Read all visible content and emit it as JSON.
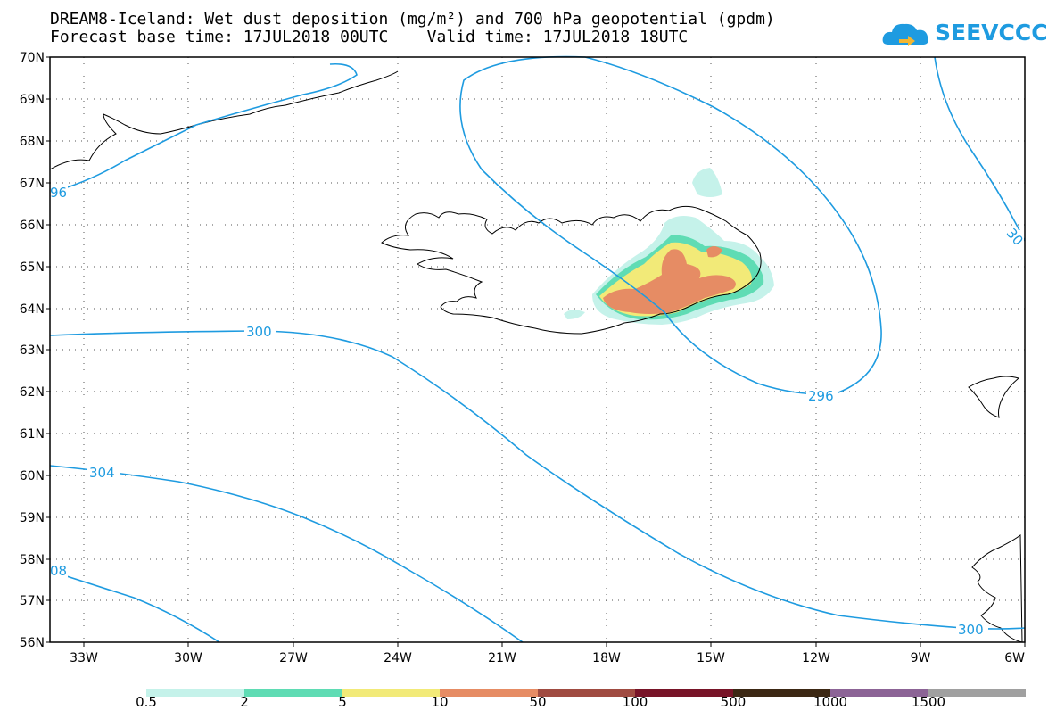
{
  "header": {
    "title_line1": "DREAM8-Iceland: Wet dust deposition (mg/m²) and 700 hPa geopotential (gpdm)",
    "title_line2": "Forecast base time: 17JUL2018 00UTC    Valid time: 17JUL2018 18UTC",
    "logo_text": "SEEVCCC",
    "logo_icon": "cloud-icon"
  },
  "map": {
    "lat_labels": [
      "70N",
      "69N",
      "68N",
      "67N",
      "66N",
      "65N",
      "64N",
      "63N",
      "62N",
      "61N",
      "60N",
      "59N",
      "58N",
      "57N",
      "56N"
    ],
    "lon_labels": [
      "33W",
      "30W",
      "27W",
      "24W",
      "21W",
      "18W",
      "15W",
      "12W",
      "9W",
      "6W"
    ],
    "contour_labels": [
      "96",
      "300",
      "296",
      "304",
      "08",
      "300",
      "30"
    ],
    "colors": {
      "contour": "#1e9be0",
      "coast": "#000000",
      "grid": "#555555"
    }
  },
  "legend": {
    "labels": [
      "0.5",
      "2",
      "5",
      "10",
      "50",
      "100",
      "500",
      "1000",
      "1500"
    ],
    "colors": [
      "#c5f2ea",
      "#5fdcb4",
      "#f2ea78",
      "#e68c64",
      "#a04b41",
      "#781428",
      "#3c2814",
      "#8c6496",
      "#a0a0a0"
    ]
  }
}
